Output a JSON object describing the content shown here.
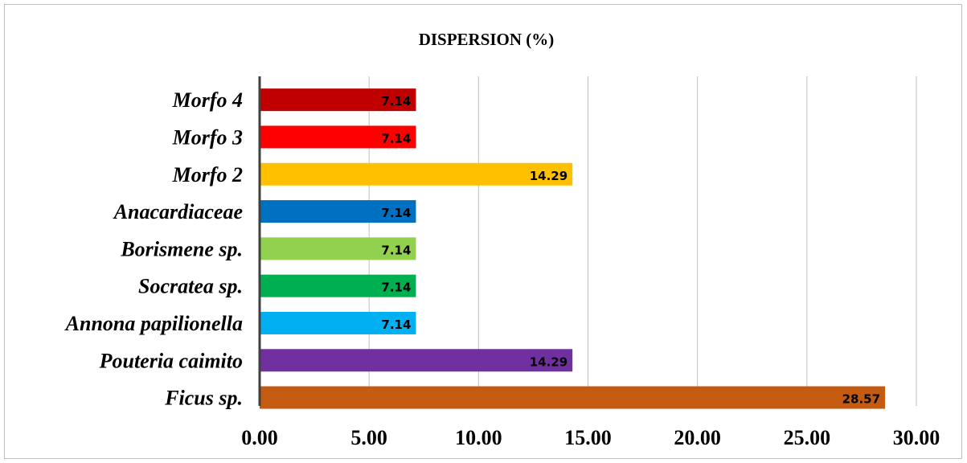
{
  "chart_data": {
    "type": "bar",
    "orientation": "horizontal",
    "title": "DISPERSION (%)",
    "xlabel": "",
    "ylabel": "",
    "categories": [
      "Morfo 4",
      "Morfo 3",
      "Morfo 2",
      "Anacardiaceae",
      "Borismene sp.",
      "Socratea sp.",
      "Annona papilionella",
      "Pouteria caimito",
      "Ficus sp."
    ],
    "values": [
      7.14,
      7.14,
      14.29,
      7.14,
      7.14,
      7.14,
      7.14,
      14.29,
      28.57
    ],
    "data_labels": [
      "7.14",
      "7.14",
      "14.29",
      "7.14",
      "7.14",
      "7.14",
      "7.14",
      "14.29",
      "28.57"
    ],
    "colors": [
      "#c00000",
      "#ff0000",
      "#ffc000",
      "#0070c0",
      "#92d050",
      "#00b050",
      "#00b0f0",
      "#7030a0",
      "#c55a11"
    ],
    "xlim": [
      0,
      30
    ],
    "ticks": [
      0,
      5,
      10,
      15,
      20,
      25,
      30
    ],
    "tick_labels": [
      "0.00",
      "5.00",
      "10.00",
      "15.00",
      "20.00",
      "25.00",
      "30.00"
    ],
    "grid": true,
    "legend": "none"
  }
}
